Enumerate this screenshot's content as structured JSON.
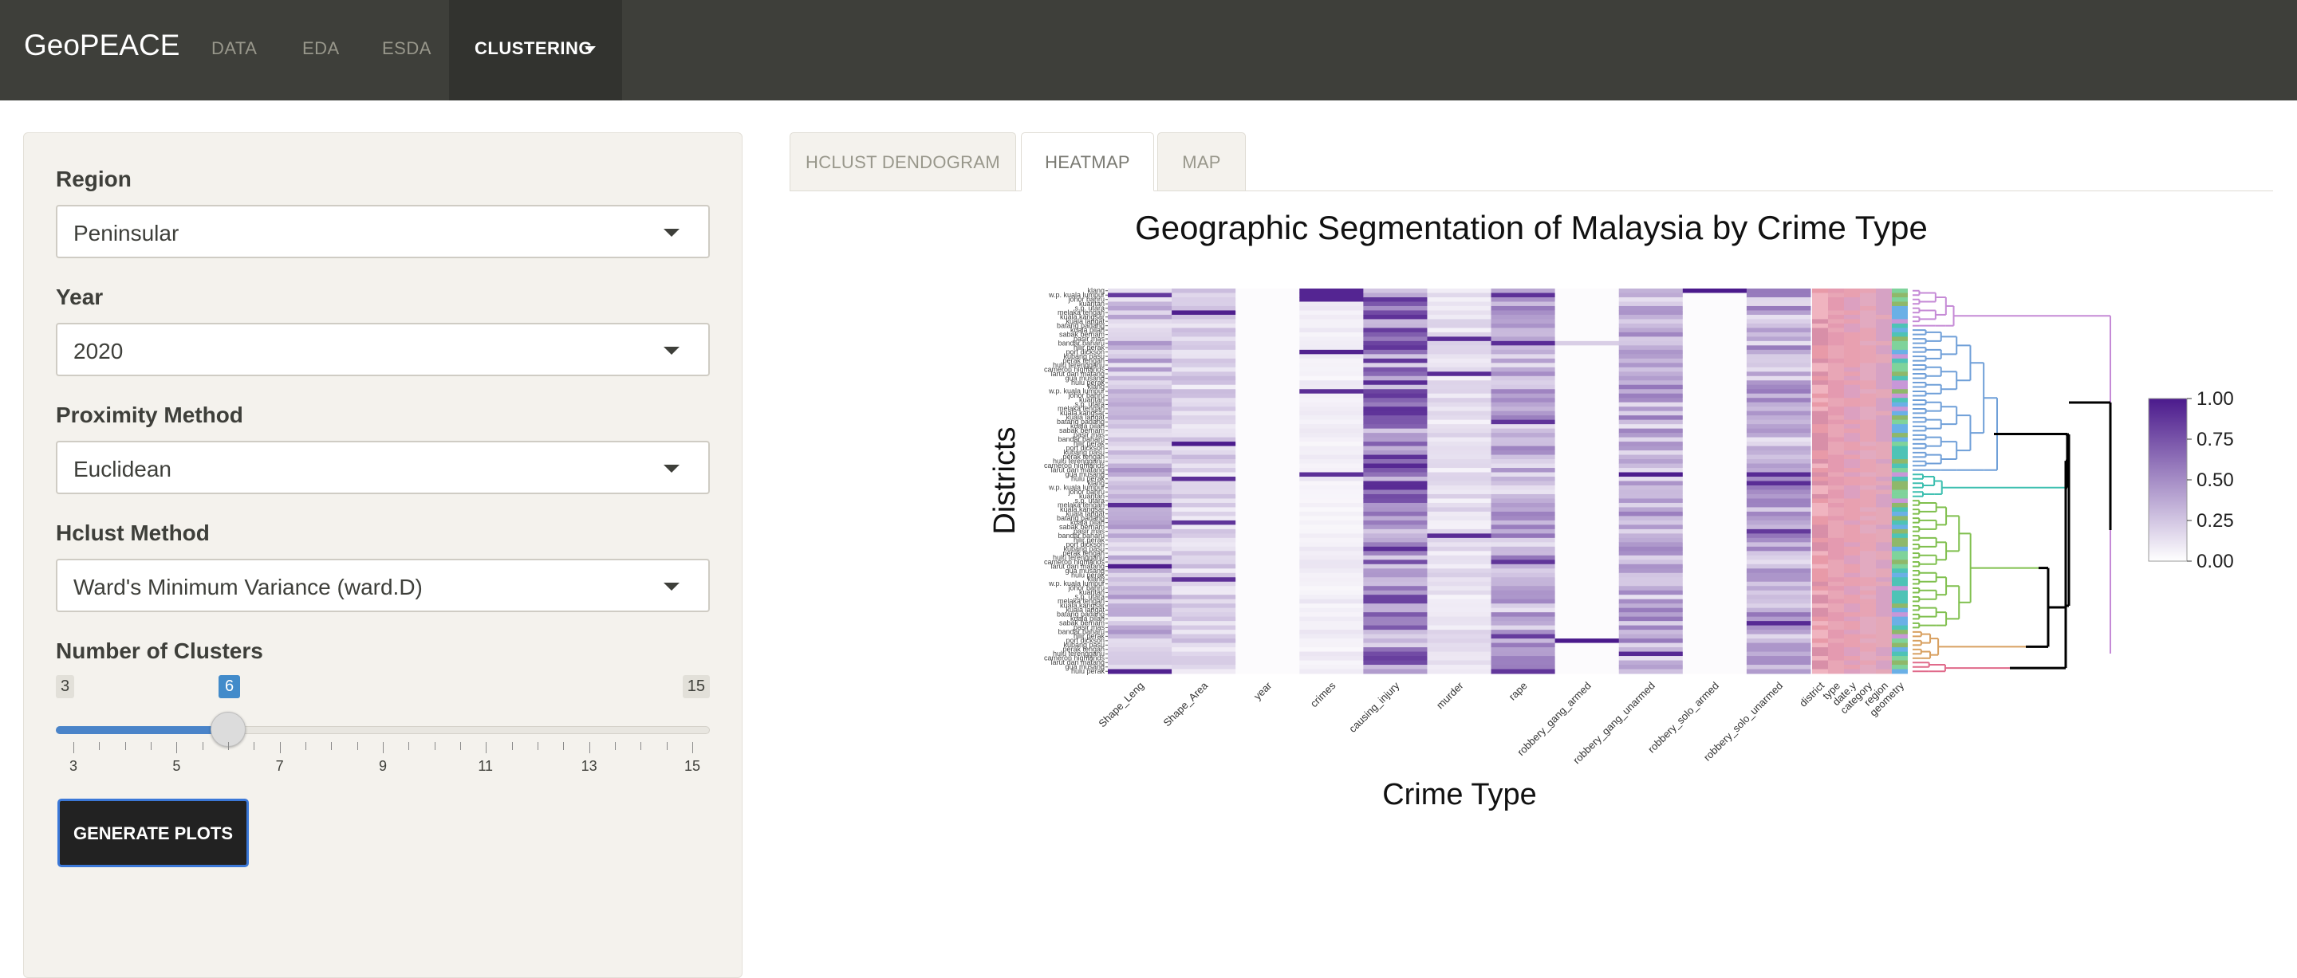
{
  "navbar": {
    "brand": "GeoPEACE",
    "items": [
      "DATA",
      "EDA",
      "ESDA"
    ],
    "active": "CLUSTERING"
  },
  "sidebar": {
    "region": {
      "label": "Region",
      "value": "Peninsular"
    },
    "year": {
      "label": "Year",
      "value": "2020"
    },
    "proximity": {
      "label": "Proximity Method",
      "value": "Euclidean"
    },
    "hclust": {
      "label": "Hclust Method",
      "value": "Ward's Minimum Variance (ward.D)"
    },
    "clusters": {
      "label": "Number of Clusters",
      "min": "3",
      "max": "15",
      "value": "6",
      "min_num": 3,
      "max_num": 15,
      "value_num": 6,
      "tick_labels": [
        "3",
        "5",
        "7",
        "9",
        "11",
        "13",
        "15"
      ]
    },
    "generate_label": "GENERATE PLOTS"
  },
  "tabs": [
    {
      "label": "HCLUST DENDOGRAM",
      "active": false
    },
    {
      "label": "HEATMAP",
      "active": true
    },
    {
      "label": "MAP",
      "active": false
    }
  ],
  "chart_data": {
    "type": "heatmap",
    "title": "Geographic Segmentation of Malaysia by Crime Type",
    "xlabel": "Crime Type",
    "ylabel": "Districts",
    "columns": [
      "Shape_Leng",
      "Shape_Area",
      "year",
      "crimes",
      "causing_injury",
      "murder",
      "rape",
      "robbery_gang_armed",
      "robbery_gang_unarmed",
      "robbery_solo_armed",
      "robbery_solo_unarmed",
      "district",
      "type",
      "date.y",
      "category",
      "region",
      "geometry"
    ],
    "row_labels_visible": [
      "klang",
      "w.p. kuala lumpur",
      "johor bahru",
      "kuantan",
      "s.p. utara",
      "melaka tengah",
      "kuala kangsar",
      "kuala langat",
      "batang padang",
      "kuala pilah",
      "sabak bernam",
      "pasir mas",
      "bandar baharu",
      "hilir perak",
      "port dickson",
      "kubang pasu",
      "perak tengah",
      "hulu terengganu",
      "cameron highlands",
      "larut dan matang",
      "gua musang",
      "hulu perak"
    ],
    "colorbar": {
      "range": [
        0,
        1
      ],
      "ticks": [
        "1.00",
        "0.75",
        "0.50",
        "0.25",
        "0.00"
      ],
      "low": "#ffffff",
      "high": "#4b1a8c"
    },
    "cluster_colors": [
      "#c58ad6",
      "#6f9fd8",
      "#3dbfb0",
      "#7fbf4d",
      "#e06a8a",
      "#d8a060"
    ]
  }
}
